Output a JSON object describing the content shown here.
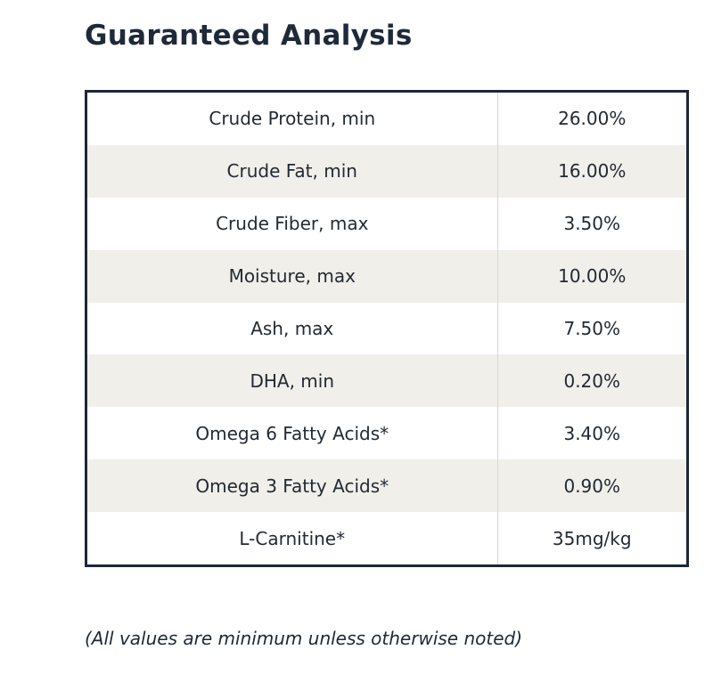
{
  "title": "Guaranteed Analysis",
  "rows": [
    {
      "label": "Crude Protein, min",
      "value": "26.00%"
    },
    {
      "label": "Crude Fat, min",
      "value": "16.00%"
    },
    {
      "label": "Crude Fiber, max",
      "value": "3.50%"
    },
    {
      "label": "Moisture, max",
      "value": "10.00%"
    },
    {
      "label": "Ash, max",
      "value": "7.50%"
    },
    {
      "label": "DHA, min",
      "value": "0.20%"
    },
    {
      "label": "Omega 6 Fatty Acids*",
      "value": "3.40%"
    },
    {
      "label": "Omega 3 Fatty Acids*",
      "value": "0.90%"
    },
    {
      "label": "L-Carnitine*",
      "value": "35mg/kg"
    }
  ],
  "note": "(All values are minimum unless otherwise noted)",
  "colors": {
    "title": "#1e2a3a",
    "border": "#1d2738",
    "stripe": "#f1efea"
  }
}
